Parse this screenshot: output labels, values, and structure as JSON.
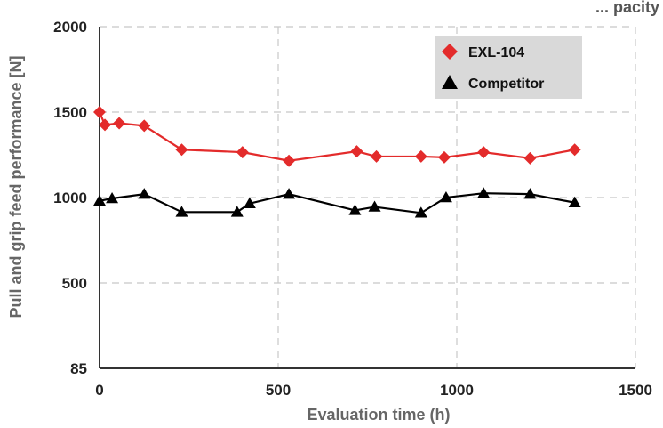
{
  "chart_data": {
    "type": "line",
    "title": "... pacity",
    "xlabel": "Evaluation time (h)",
    "ylabel": "Pull and grip feed performance [N]",
    "xlim": [
      0,
      1500
    ],
    "xticks": [
      0,
      500,
      1000,
      1500
    ],
    "yticks": [
      2000,
      1500,
      1000,
      500,
      85
    ],
    "grid": true,
    "legend_position": "top-right",
    "series": [
      {
        "name": "EXL-104",
        "color": "#e32b2b",
        "marker": "diamond",
        "x": [
          0,
          15,
          55,
          125,
          230,
          400,
          530,
          720,
          775,
          900,
          965,
          1075,
          1205,
          1330
        ],
        "y": [
          1500,
          1425,
          1435,
          1420,
          1280,
          1265,
          1215,
          1270,
          1240,
          1240,
          1235,
          1265,
          1230,
          1280
        ]
      },
      {
        "name": "Competitor",
        "color": "#000000",
        "marker": "triangle",
        "x": [
          0,
          35,
          125,
          230,
          385,
          420,
          530,
          715,
          770,
          900,
          970,
          1075,
          1205,
          1330
        ],
        "y": [
          980,
          995,
          1020,
          915,
          915,
          965,
          1020,
          925,
          945,
          910,
          1000,
          1025,
          1020,
          970
        ]
      }
    ]
  }
}
